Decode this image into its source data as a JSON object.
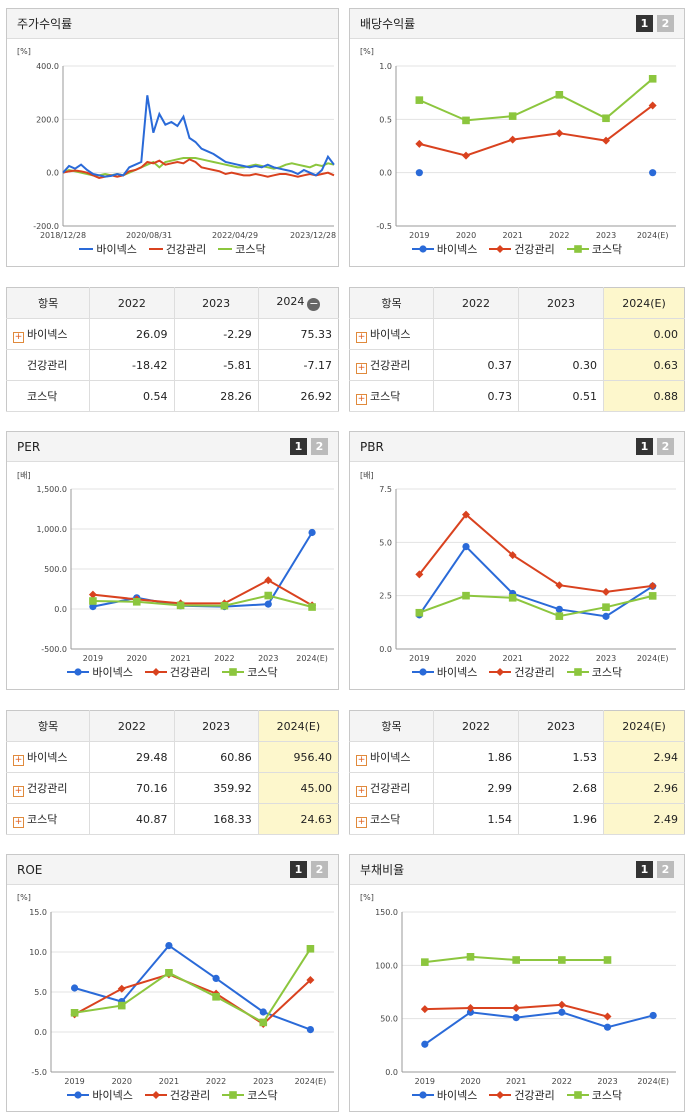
{
  "legend": {
    "bionex": "바이넥스",
    "health": "건강관리",
    "kosdaq": "코스닥"
  },
  "colors": {
    "bionex": "#2a6ad8",
    "health": "#d9421f",
    "kosdaq": "#8cc63e"
  },
  "pager": {
    "p1": "1",
    "p2": "2"
  },
  "tables": {
    "stock": {
      "headers": [
        "항목",
        "2022",
        "2023",
        "2024"
      ],
      "rows": [
        {
          "name": "바이넥스",
          "plus": true,
          "vals": [
            "26.09",
            "-2.29",
            "75.33"
          ]
        },
        {
          "name": "건강관리",
          "plus": false,
          "vals": [
            "-18.42",
            "-5.81",
            "-7.17"
          ]
        },
        {
          "name": "코스닥",
          "plus": false,
          "vals": [
            "0.54",
            "28.26",
            "26.92"
          ]
        }
      ]
    },
    "dividend": {
      "headers": [
        "항목",
        "2022",
        "2023",
        "2024(E)"
      ],
      "rows": [
        {
          "name": "바이넥스",
          "plus": true,
          "vals": [
            "",
            "",
            "0.00"
          ]
        },
        {
          "name": "건강관리",
          "plus": true,
          "vals": [
            "0.37",
            "0.30",
            "0.63"
          ]
        },
        {
          "name": "코스닥",
          "plus": true,
          "vals": [
            "0.73",
            "0.51",
            "0.88"
          ]
        }
      ]
    },
    "per": {
      "headers": [
        "항목",
        "2022",
        "2023",
        "2024(E)"
      ],
      "rows": [
        {
          "name": "바이넥스",
          "plus": true,
          "vals": [
            "29.48",
            "60.86",
            "956.40"
          ]
        },
        {
          "name": "건강관리",
          "plus": true,
          "vals": [
            "70.16",
            "359.92",
            "45.00"
          ]
        },
        {
          "name": "코스닥",
          "plus": true,
          "vals": [
            "40.87",
            "168.33",
            "24.63"
          ]
        }
      ]
    },
    "pbr": {
      "headers": [
        "항목",
        "2022",
        "2023",
        "2024(E)"
      ],
      "rows": [
        {
          "name": "바이넥스",
          "plus": true,
          "vals": [
            "1.86",
            "1.53",
            "2.94"
          ]
        },
        {
          "name": "건강관리",
          "plus": true,
          "vals": [
            "2.99",
            "2.68",
            "2.96"
          ]
        },
        {
          "name": "코스닥",
          "plus": true,
          "vals": [
            "1.54",
            "1.96",
            "2.49"
          ]
        }
      ]
    }
  },
  "chart_data": [
    {
      "id": "stock",
      "type": "line",
      "title": "주가수익률",
      "unit": "[%]",
      "ylim": [
        -200,
        400
      ],
      "yticks": [
        "400.0",
        "200.0",
        "0.0",
        "-200.0"
      ],
      "xticks": [
        "2018/12/28",
        "2020/08/31",
        "2022/04/29",
        "2023/12/28"
      ],
      "series": [
        {
          "name": "바이넥스",
          "values": [
            0,
            25,
            15,
            30,
            10,
            -5,
            -10,
            -15,
            -12,
            -5,
            -10,
            20,
            30,
            40,
            290,
            150,
            220,
            180,
            190,
            175,
            210,
            130,
            115,
            90,
            80,
            70,
            55,
            40,
            35,
            30,
            25,
            20,
            25,
            20,
            30,
            20,
            15,
            10,
            5,
            -5,
            10,
            0,
            -10,
            10,
            60,
            30
          ]
        },
        {
          "name": "건강관리",
          "values": [
            0,
            5,
            8,
            5,
            0,
            -10,
            -20,
            -15,
            -10,
            -15,
            -10,
            5,
            10,
            20,
            40,
            35,
            45,
            30,
            35,
            40,
            35,
            50,
            40,
            20,
            15,
            10,
            5,
            -5,
            0,
            -5,
            -10,
            -10,
            -5,
            -10,
            -15,
            -10,
            -5,
            -5,
            -10,
            -15,
            -10,
            -5,
            -10,
            -5,
            0,
            -10
          ]
        },
        {
          "name": "코스닥",
          "values": [
            0,
            10,
            5,
            0,
            -5,
            -10,
            -10,
            -5,
            -10,
            -5,
            -10,
            0,
            10,
            20,
            30,
            40,
            20,
            40,
            45,
            50,
            55,
            55,
            55,
            50,
            45,
            40,
            35,
            30,
            25,
            20,
            20,
            25,
            30,
            25,
            20,
            15,
            20,
            30,
            35,
            30,
            25,
            20,
            30,
            25,
            35,
            30
          ]
        }
      ]
    },
    {
      "id": "dividend",
      "type": "line",
      "title": "배당수익률",
      "unit": "[%]",
      "ylim": [
        -0.5,
        1.0
      ],
      "yticks": [
        "1.0",
        "0.5",
        "0.0",
        "-0.5"
      ],
      "categories": [
        "2019",
        "2020",
        "2021",
        "2022",
        "2023",
        "2024(E)"
      ],
      "series": [
        {
          "name": "바이넥스",
          "values": [
            0.0,
            null,
            null,
            null,
            null,
            0.0
          ]
        },
        {
          "name": "건강관리",
          "values": [
            0.27,
            0.16,
            0.31,
            0.37,
            0.3,
            0.63
          ]
        },
        {
          "name": "코스닥",
          "values": [
            0.68,
            0.49,
            0.53,
            0.73,
            0.51,
            0.88
          ]
        }
      ]
    },
    {
      "id": "per",
      "type": "line",
      "title": "PER",
      "unit": "[배]",
      "ylim": [
        -500,
        1500
      ],
      "yticks": [
        "1,500.0",
        "1,000.0",
        "500.0",
        "0.0",
        "-500.0"
      ],
      "categories": [
        "2019",
        "2020",
        "2021",
        "2022",
        "2023",
        "2024(E)"
      ],
      "series": [
        {
          "name": "바이넥스",
          "values": [
            30,
            140,
            40,
            29.48,
            60.86,
            956.4
          ]
        },
        {
          "name": "건강관리",
          "values": [
            180,
            120,
            70,
            70.16,
            359.92,
            45.0
          ]
        },
        {
          "name": "코스닥",
          "values": [
            100,
            90,
            45,
            40.87,
            168.33,
            24.63
          ]
        }
      ]
    },
    {
      "id": "pbr",
      "type": "line",
      "title": "PBR",
      "unit": "[배]",
      "ylim": [
        0,
        7.5
      ],
      "yticks": [
        "7.5",
        "5.0",
        "2.5",
        "0.0"
      ],
      "categories": [
        "2019",
        "2020",
        "2021",
        "2022",
        "2023",
        "2024(E)"
      ],
      "series": [
        {
          "name": "바이넥스",
          "values": [
            1.6,
            4.8,
            2.6,
            1.86,
            1.53,
            2.94
          ]
        },
        {
          "name": "건강관리",
          "values": [
            3.5,
            6.3,
            4.4,
            2.99,
            2.68,
            2.96
          ]
        },
        {
          "name": "코스닥",
          "values": [
            1.7,
            2.5,
            2.4,
            1.54,
            1.96,
            2.49
          ]
        }
      ]
    },
    {
      "id": "roe",
      "type": "line",
      "title": "ROE",
      "unit": "[%]",
      "ylim": [
        -5,
        15
      ],
      "yticks": [
        "15.0",
        "10.0",
        "5.0",
        "0.0",
        "-5.0"
      ],
      "categories": [
        "2019",
        "2020",
        "2021",
        "2022",
        "2023",
        "2024(E)"
      ],
      "series": [
        {
          "name": "바이넥스",
          "values": [
            5.5,
            3.8,
            10.8,
            6.7,
            2.5,
            0.3
          ]
        },
        {
          "name": "건강관리",
          "values": [
            2.2,
            5.4,
            7.2,
            4.8,
            1.0,
            6.5
          ]
        },
        {
          "name": "코스닥",
          "values": [
            2.4,
            3.3,
            7.4,
            4.4,
            1.2,
            10.4
          ]
        }
      ]
    },
    {
      "id": "debt",
      "type": "line",
      "title": "부채비율",
      "unit": "[%]",
      "ylim": [
        0,
        150
      ],
      "yticks": [
        "150.0",
        "100.0",
        "50.0",
        "0.0"
      ],
      "categories": [
        "2019",
        "2020",
        "2021",
        "2022",
        "2023",
        "2024(E)"
      ],
      "series": [
        {
          "name": "바이넥스",
          "values": [
            26,
            56,
            51,
            56,
            42,
            53
          ]
        },
        {
          "name": "건강관리",
          "values": [
            59,
            60,
            60,
            63,
            52,
            null
          ]
        },
        {
          "name": "코스닥",
          "values": [
            103,
            108,
            105,
            105,
            105,
            null
          ]
        }
      ]
    }
  ]
}
